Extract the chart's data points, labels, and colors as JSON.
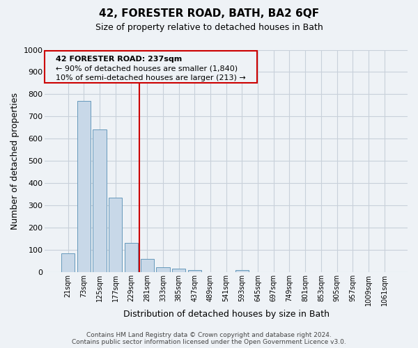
{
  "title": "42, FORESTER ROAD, BATH, BA2 6QF",
  "subtitle": "Size of property relative to detached houses in Bath",
  "xlabel": "Distribution of detached houses by size in Bath",
  "ylabel": "Number of detached properties",
  "bar_values": [
    85,
    770,
    640,
    335,
    130,
    58,
    22,
    15,
    8,
    0,
    0,
    10,
    0,
    0,
    0,
    0,
    0,
    0,
    0,
    0,
    0
  ],
  "bar_labels": [
    "21sqm",
    "73sqm",
    "125sqm",
    "177sqm",
    "229sqm",
    "281sqm",
    "333sqm",
    "385sqm",
    "437sqm",
    "489sqm",
    "541sqm",
    "593sqm",
    "645sqm",
    "697sqm",
    "749sqm",
    "801sqm",
    "853sqm",
    "905sqm",
    "957sqm",
    "1009sqm",
    "1061sqm"
  ],
  "bar_color": "#c8d8e8",
  "bar_edge_color": "#6699bb",
  "vline_color": "#cc0000",
  "ylim": [
    0,
    1000
  ],
  "yticks": [
    0,
    100,
    200,
    300,
    400,
    500,
    600,
    700,
    800,
    900,
    1000
  ],
  "annotation_title": "42 FORESTER ROAD: 237sqm",
  "annotation_line1": "← 90% of detached houses are smaller (1,840)",
  "annotation_line2": "10% of semi-detached houses are larger (213) →",
  "annotation_box_color": "#cc0000",
  "footer_line1": "Contains HM Land Registry data © Crown copyright and database right 2024.",
  "footer_line2": "Contains public sector information licensed under the Open Government Licence v3.0.",
  "background_color": "#eef2f6",
  "grid_color": "#c8d0da",
  "n_bars": 21
}
